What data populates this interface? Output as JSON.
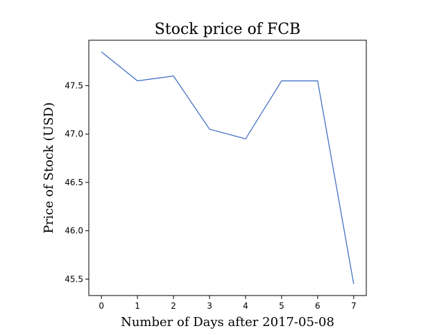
{
  "chart_data": {
    "type": "line",
    "title": "Stock price of FCB",
    "xlabel": "Number of Days after 2017-05-08",
    "ylabel": "Price of Stock (USD)",
    "x": [
      0,
      1,
      2,
      3,
      4,
      5,
      6,
      7
    ],
    "y": [
      47.85,
      47.55,
      47.6,
      47.05,
      46.95,
      47.55,
      47.55,
      45.45
    ],
    "xlim": [
      -0.35,
      7.35
    ],
    "ylim": [
      45.33,
      47.97
    ],
    "xticks": [
      0,
      1,
      2,
      3,
      4,
      5,
      6,
      7
    ],
    "yticks": [
      45.5,
      46.0,
      46.5,
      47.0,
      47.5
    ],
    "ytick_labels": [
      "45.5",
      "46.0",
      "46.5",
      "47.0",
      "47.5"
    ],
    "line_color": "#4472c4",
    "grid": false,
    "legend": "none"
  }
}
